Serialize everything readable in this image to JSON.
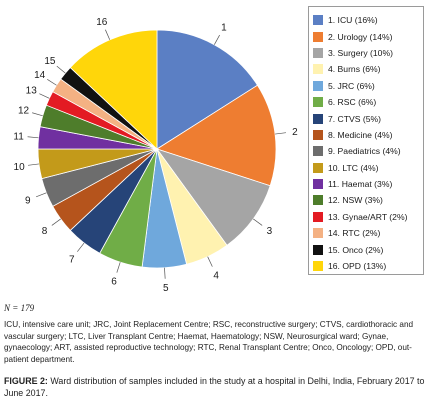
{
  "chart_data": {
    "type": "pie",
    "legend_position": "right",
    "slices": [
      {
        "callout": "1",
        "label": "1. ICU (16%)",
        "value": 16,
        "color": "#5b7fc4"
      },
      {
        "callout": "2",
        "label": "2. Urology (14%)",
        "value": 14,
        "color": "#ee7d31"
      },
      {
        "callout": "3",
        "label": "3. Surgery (10%)",
        "value": 10,
        "color": "#a5a5a5"
      },
      {
        "callout": "4",
        "label": "4. Burns (6%)",
        "value": 6,
        "color": "#fff2b0"
      },
      {
        "callout": "5",
        "label": "5. JRC (6%)",
        "value": 6,
        "color": "#6fa8dc"
      },
      {
        "callout": "6",
        "label": "6. RSC (6%)",
        "value": 6,
        "color": "#70ad47"
      },
      {
        "callout": "7",
        "label": "7. CTVS (5%)",
        "value": 5,
        "color": "#264478"
      },
      {
        "callout": "8",
        "label": "8. Medicine (4%)",
        "value": 4,
        "color": "#b5541c"
      },
      {
        "callout": "9",
        "label": "9. Paediatrics (4%)",
        "value": 4,
        "color": "#6d6d6d"
      },
      {
        "callout": "10",
        "label": "10. LTC (4%)",
        "value": 4,
        "color": "#c39a1a"
      },
      {
        "callout": "11",
        "label": "11. Haemat (3%)",
        "value": 3,
        "color": "#7030a0"
      },
      {
        "callout": "12",
        "label": "12. NSW (3%)",
        "value": 3,
        "color": "#4e7d2b"
      },
      {
        "callout": "13",
        "label": "13. Gynae/ART (2%)",
        "value": 2,
        "color": "#e31b23"
      },
      {
        "callout": "14",
        "label": "14. RTC (2%)",
        "value": 2,
        "color": "#f4b183"
      },
      {
        "callout": "15",
        "label": "15. Onco (2%)",
        "value": 2,
        "color": "#111111"
      },
      {
        "callout": "16",
        "label": "16. OPD (13%)",
        "value": 13,
        "color": "#ffd60a"
      }
    ]
  },
  "n_label": "N = 179",
  "abbreviations_note": "ICU, intensive care unit; JRC, Joint Replacement Centre; RSC, reconstructive surgery; CTVS, cardiothoracic and vascular surgery; LTC, Liver Transplant Centre; Haemat, Haematology; NSW, Neurosurgical ward; Gynae, gynaecology; ART, assisted reproductive technology; RTC, Renal Transplant Centre; Onco, Oncology; OPD, out-patient department.",
  "caption": {
    "label": "FIGURE 2:",
    "text": " Ward distribution of samples included in the study at a hospital in Delhi, India, February 2017 to June 2017."
  }
}
